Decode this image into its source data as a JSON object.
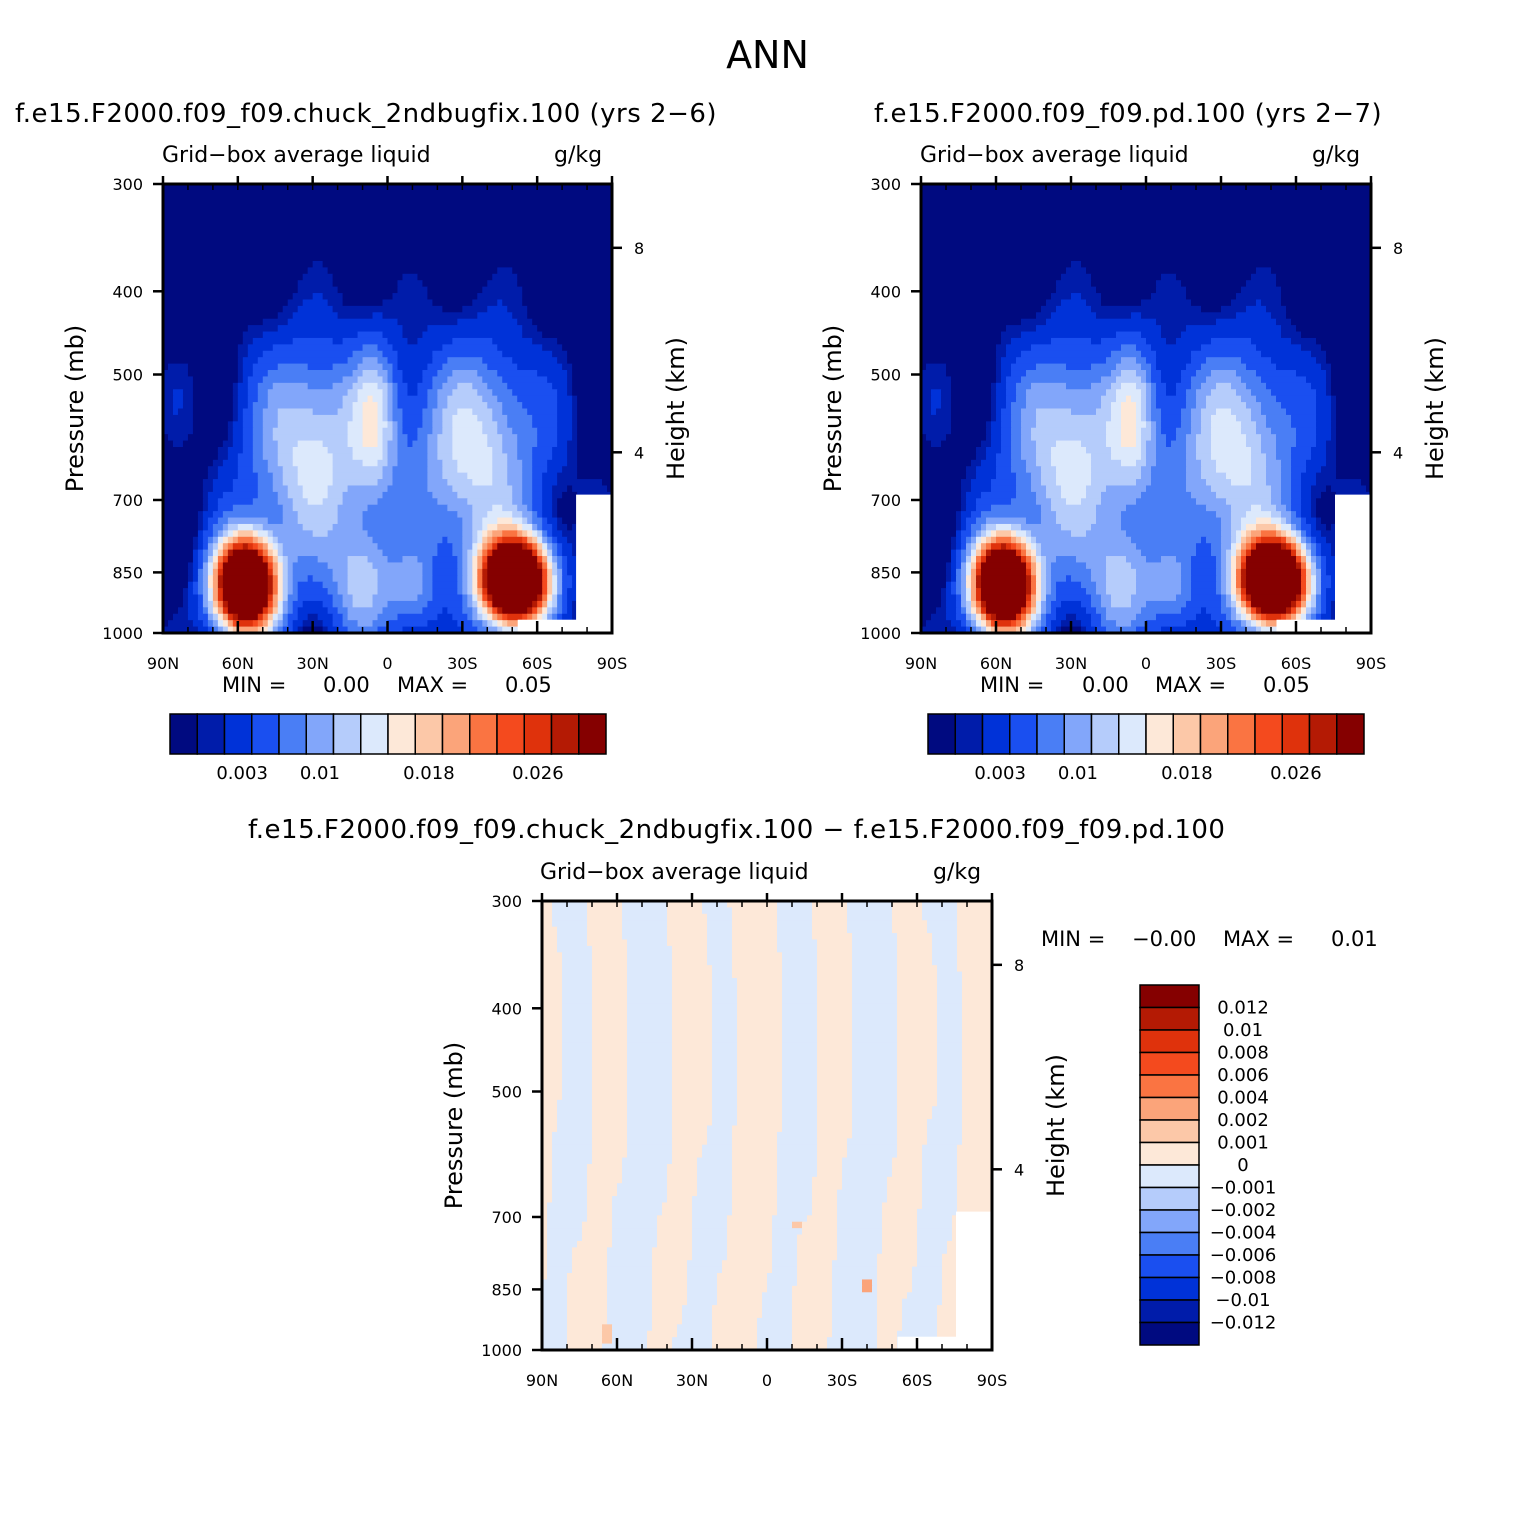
{
  "figure": {
    "title": "ANN",
    "diff_title": "f.e15.F2000.f09_f09.chuck_2ndbugfix.100 − f.e15.F2000.f09_f09.pd.100"
  },
  "chart_data": [
    {
      "type": "heatmap",
      "title": "f.e15.F2000.f09_f09.chuck_2ndbugfix.100 (yrs 2−6)",
      "variable": "Grid−box average liquid",
      "units": "g/kg",
      "xlabel": "",
      "ylabel": "Pressure (mb)",
      "ylabel_right": "Height (km)",
      "x_ticks": [
        "90N",
        "60N",
        "30N",
        "0",
        "30S",
        "60S",
        "90S"
      ],
      "y_ticks": [
        300,
        400,
        500,
        700,
        850,
        1000
      ],
      "y_right_ticks": [
        8,
        4
      ],
      "ylim": [
        1000,
        300
      ],
      "min_label": "MIN =",
      "min_value": "0.00",
      "max_label": "MAX =",
      "max_value": "0.05",
      "colorbar_labels": [
        "0.003",
        "0.01",
        "0.018",
        "0.026"
      ]
    },
    {
      "type": "heatmap",
      "title": "f.e15.F2000.f09_f09.pd.100 (yrs 2−7)",
      "variable": "Grid−box average liquid",
      "units": "g/kg",
      "xlabel": "",
      "ylabel": "Pressure (mb)",
      "ylabel_right": "Height (km)",
      "x_ticks": [
        "90N",
        "60N",
        "30N",
        "0",
        "30S",
        "60S",
        "90S"
      ],
      "y_ticks": [
        300,
        400,
        500,
        700,
        850,
        1000
      ],
      "y_right_ticks": [
        8,
        4
      ],
      "ylim": [
        1000,
        300
      ],
      "min_label": "MIN =",
      "min_value": "0.00",
      "max_label": "MAX =",
      "max_value": "0.05",
      "colorbar_labels": [
        "0.003",
        "0.01",
        "0.018",
        "0.026"
      ]
    },
    {
      "type": "heatmap",
      "title": "",
      "variable": "Grid−box average liquid",
      "units": "g/kg",
      "xlabel": "",
      "ylabel": "Pressure (mb)",
      "ylabel_right": "Height (km)",
      "x_ticks": [
        "90N",
        "60N",
        "30N",
        "0",
        "30S",
        "60S",
        "90S"
      ],
      "y_ticks": [
        300,
        400,
        500,
        700,
        850,
        1000
      ],
      "y_right_ticks": [
        8,
        4
      ],
      "ylim": [
        1000,
        300
      ],
      "min_label": "MIN =",
      "min_value": "−0.00",
      "max_label": "MAX =",
      "max_value": "0.01",
      "colorbar_labels": [
        "0.012",
        "0.01",
        "0.008",
        "0.006",
        "0.004",
        "0.002",
        "0.001",
        "0",
        "−0.001",
        "−0.002",
        "−0.004",
        "−0.006",
        "−0.008",
        "−0.01",
        "−0.012"
      ]
    }
  ],
  "colors": {
    "main_scale": [
      "#000a80",
      "#001caa",
      "#0032d8",
      "#1a4ff0",
      "#4a7ef5",
      "#82a6fa",
      "#b5ccfb",
      "#dce9fc",
      "#fde8d8",
      "#fcc8a8",
      "#fba47a",
      "#fa7442",
      "#f44a1e",
      "#df320c",
      "#b41a04",
      "#850000"
    ],
    "diff_scale": [
      "#850000",
      "#b41a04",
      "#df320c",
      "#f44a1e",
      "#fa7442",
      "#fba47a",
      "#fcc8a8",
      "#fde8d8",
      "#dce9fc",
      "#b5ccfb",
      "#82a6fa",
      "#4a7ef5",
      "#1a4ff0",
      "#0032d8",
      "#001caa",
      "#000a80"
    ]
  }
}
